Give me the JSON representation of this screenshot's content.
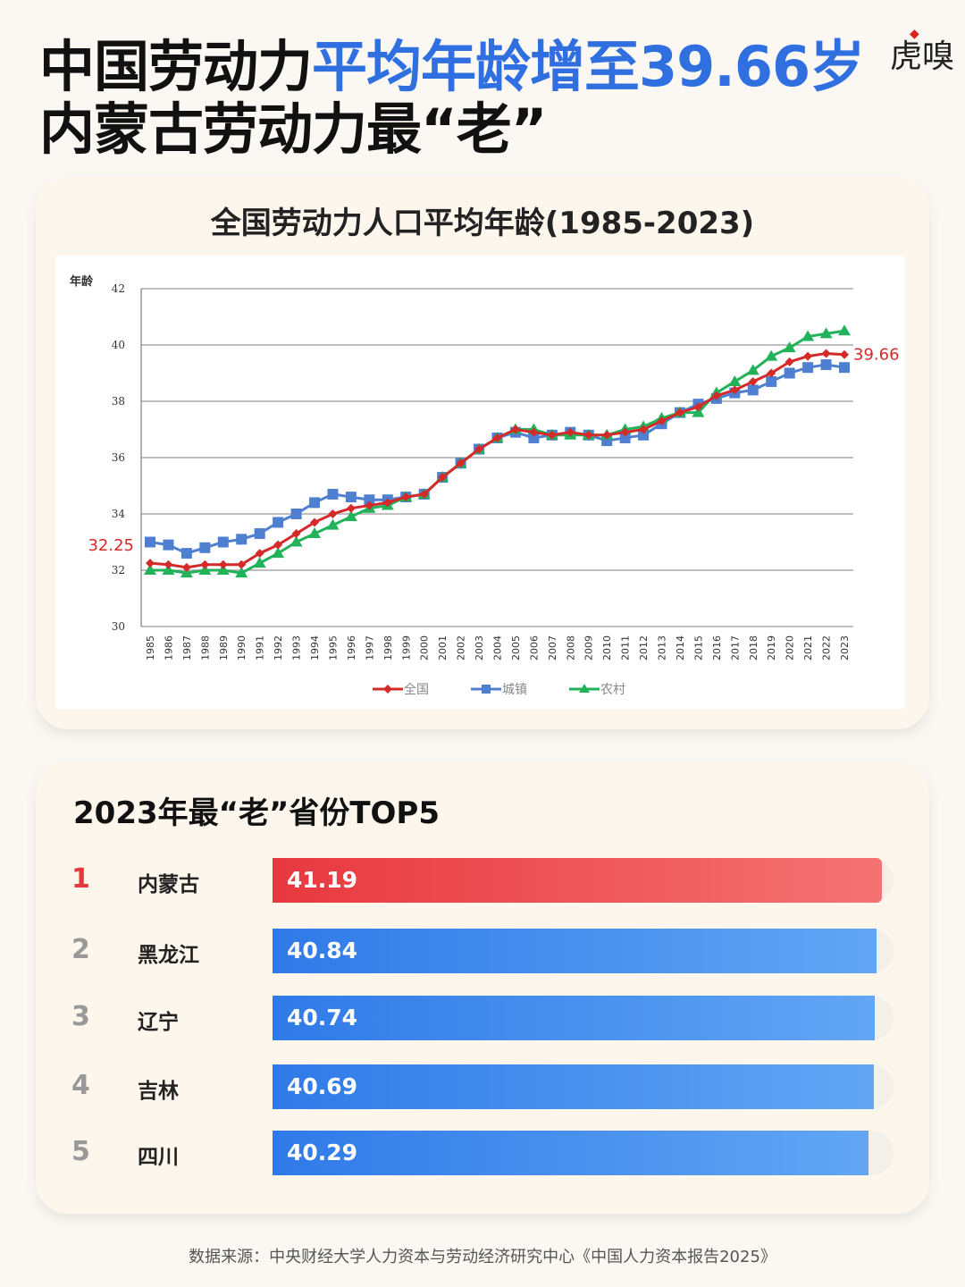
{
  "headline": {
    "part1": "中国劳动力",
    "part2": "平均年龄增至39.66岁",
    "line2": "内蒙古劳动力最“老”"
  },
  "logo": "虎嗅",
  "chart_data": {
    "type": "line",
    "title": "全国劳动力人口平均年龄(1985-2023)",
    "ylabel": "年龄",
    "ylim": [
      30,
      42
    ],
    "yticks": [
      30,
      32,
      34,
      36,
      38,
      40,
      42
    ],
    "grid": true,
    "legend_position": "bottom",
    "x": [
      1985,
      1986,
      1987,
      1988,
      1989,
      1990,
      1991,
      1992,
      1993,
      1994,
      1995,
      1996,
      1997,
      1998,
      1999,
      2000,
      2001,
      2002,
      2003,
      2004,
      2005,
      2006,
      2007,
      2008,
      2009,
      2010,
      2011,
      2012,
      2013,
      2014,
      2015,
      2016,
      2017,
      2018,
      2019,
      2020,
      2021,
      2022,
      2023
    ],
    "series": [
      {
        "name": "全国",
        "color": "#d42a2a",
        "marker": "diamond",
        "values": [
          32.25,
          32.2,
          32.1,
          32.2,
          32.2,
          32.2,
          32.6,
          32.9,
          33.3,
          33.7,
          34.0,
          34.2,
          34.3,
          34.4,
          34.6,
          34.7,
          35.3,
          35.8,
          36.3,
          36.7,
          37.0,
          36.9,
          36.8,
          36.9,
          36.8,
          36.8,
          36.9,
          37.0,
          37.3,
          37.6,
          37.8,
          38.2,
          38.4,
          38.7,
          39.0,
          39.4,
          39.6,
          39.7,
          39.66
        ]
      },
      {
        "name": "城镇",
        "color": "#4f7fd0",
        "marker": "square",
        "values": [
          33.0,
          32.9,
          32.6,
          32.8,
          33.0,
          33.1,
          33.3,
          33.7,
          34.0,
          34.4,
          34.7,
          34.6,
          34.5,
          34.5,
          34.6,
          34.7,
          35.3,
          35.8,
          36.3,
          36.7,
          36.9,
          36.7,
          36.8,
          36.9,
          36.8,
          36.6,
          36.7,
          36.8,
          37.2,
          37.6,
          37.9,
          38.1,
          38.3,
          38.4,
          38.7,
          39.0,
          39.2,
          39.3,
          39.2
        ]
      },
      {
        "name": "农村",
        "color": "#22b35a",
        "marker": "triangle",
        "values": [
          32.0,
          32.0,
          31.9,
          32.0,
          32.0,
          31.9,
          32.25,
          32.6,
          33.0,
          33.3,
          33.6,
          33.9,
          34.2,
          34.3,
          34.6,
          34.7,
          35.3,
          35.8,
          36.3,
          36.7,
          37.0,
          37.0,
          36.8,
          36.8,
          36.8,
          36.8,
          37.0,
          37.1,
          37.4,
          37.6,
          37.6,
          38.3,
          38.7,
          39.1,
          39.6,
          39.9,
          40.3,
          40.4,
          40.5
        ]
      }
    ],
    "annotations": [
      {
        "label": "32.25",
        "x": 1985,
        "series": "全国"
      },
      {
        "label": "39.66",
        "x": 2023,
        "series": "全国"
      }
    ]
  },
  "ranking": {
    "title": "2023年最“老”省份TOP5",
    "max": 42,
    "items": [
      {
        "rank": "1",
        "province": "内蒙古",
        "value": 41.19
      },
      {
        "rank": "2",
        "province": "黑龙江",
        "value": 40.84
      },
      {
        "rank": "3",
        "province": "辽宁",
        "value": 40.74
      },
      {
        "rank": "4",
        "province": "吉林",
        "value": 40.69
      },
      {
        "rank": "5",
        "province": "四川",
        "value": 40.29
      }
    ]
  },
  "source": "数据来源：中央财经大学人力资本与劳动经济研究中心《中国人力资本报告2025》",
  "colors": {
    "accent": "#2f6fe0",
    "top": "#e8383f",
    "bar": "#2f7ae8"
  }
}
